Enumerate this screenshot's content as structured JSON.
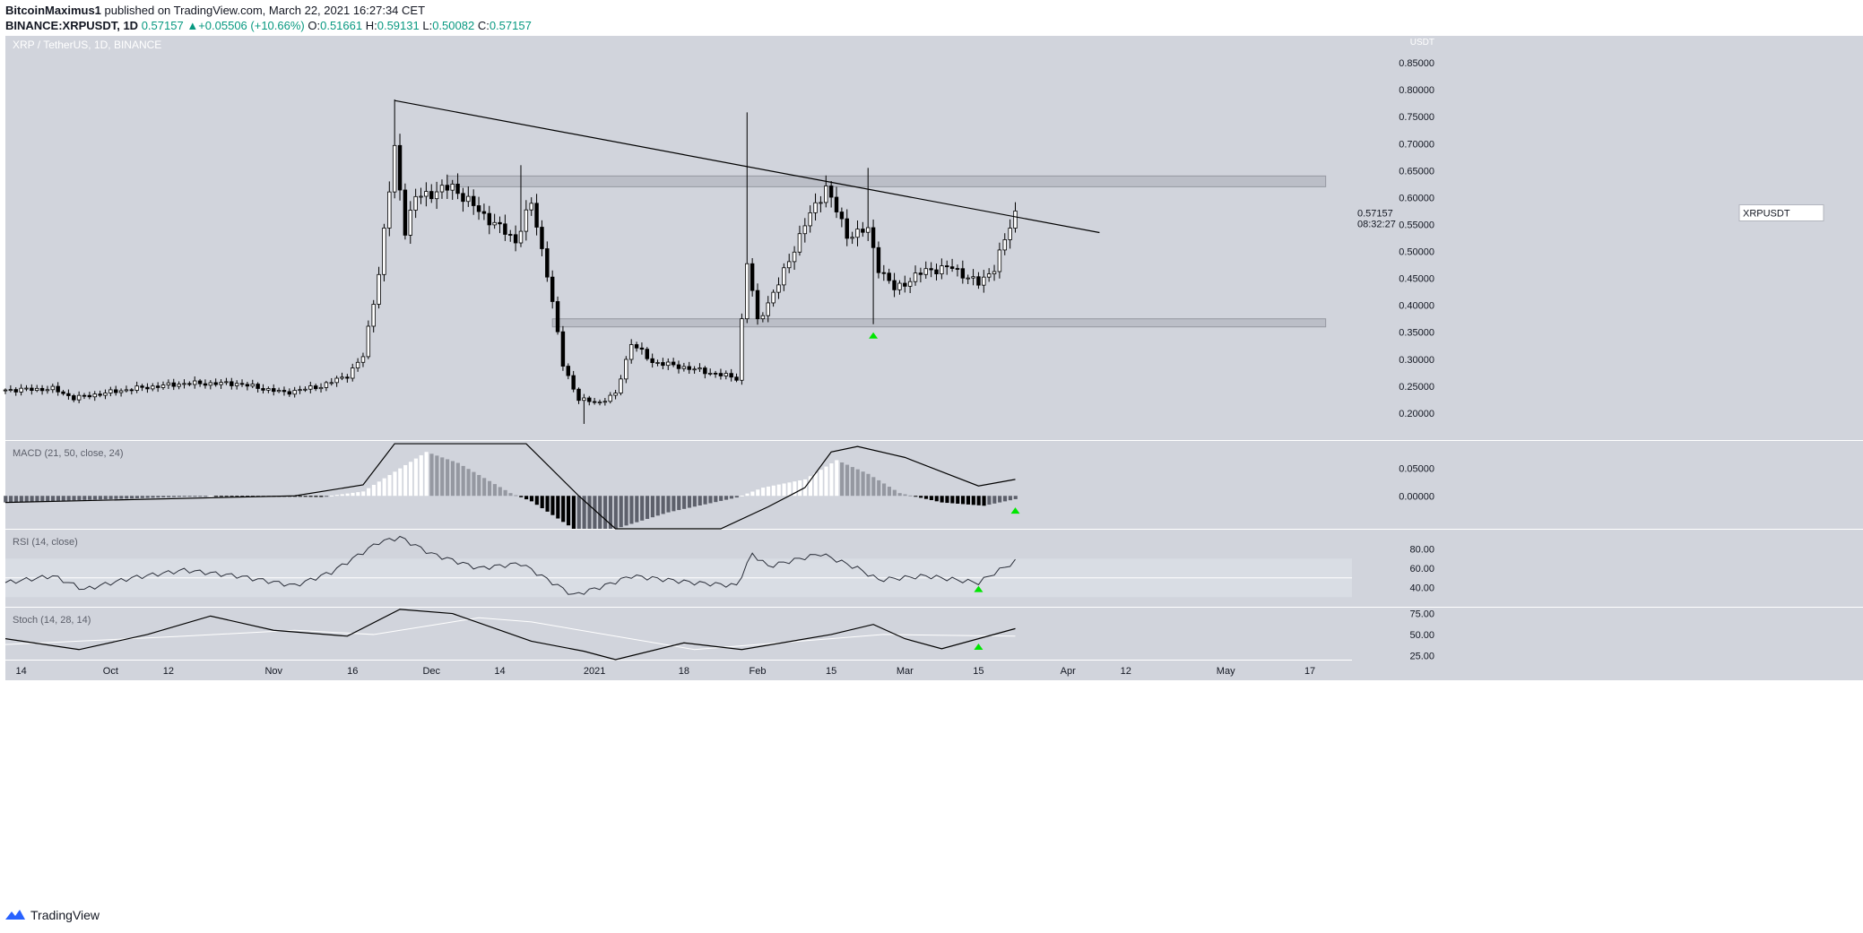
{
  "header": {
    "line1": {
      "author": "BitcoinMaximus1",
      "rest": "published on TradingView.com, March 22, 2021 16:27:34 CET"
    },
    "line2": {
      "symbol": "BINANCE:XRPUSDT, 1D",
      "last": "0.57157",
      "change": "+0.05506 (+10.66%)",
      "o_label": "O:",
      "o": "0.51661",
      "h_label": "H:",
      "h": "0.59131",
      "l_label": "L:",
      "l": "0.50082",
      "c_label": "C:",
      "c": "0.57157"
    }
  },
  "footer": {
    "brand": "TradingView"
  },
  "colors": {
    "background": "#d1d4dc",
    "bull": "#ffffff",
    "bear": "#000000",
    "zone": "#b2b5be",
    "signal": "#00e600"
  },
  "icons": {
    "up_triangle": "green-triangle-up-icon",
    "brand": "tradingview-logo-icon"
  },
  "chart_data": [
    {
      "type": "candlestick",
      "title": "XRP / TetherUS, 1D, BINANCE",
      "ylabel": "USDT",
      "ylim": [
        0.15,
        0.9
      ],
      "y_ticks": [
        "0.85000",
        "0.80000",
        "0.75000",
        "0.70000",
        "0.65000",
        "0.60000",
        "0.55000",
        "0.50000",
        "0.45000",
        "0.40000",
        "0.35000",
        "0.30000",
        "0.25000",
        "0.20000"
      ],
      "x_ticks": [
        "14",
        "Oct",
        "12",
        "Nov",
        "16",
        "Dec",
        "14",
        "2021",
        "18",
        "Feb",
        "15",
        "Mar",
        "15",
        "Apr",
        "12",
        "May",
        "17"
      ],
      "x_range_dates": [
        "2020-09-11",
        "2021-05-25"
      ],
      "price_label": {
        "symbol": "XRPUSDT",
        "value": "0.57157",
        "countdown": "08:32:27"
      },
      "resistance_zone": [
        0.62,
        0.64
      ],
      "support_zone": [
        0.36,
        0.375
      ],
      "descending_trendline": [
        {
          "date": "2020-11-24",
          "price": 0.78
        },
        {
          "date": "2021-04-07",
          "price": 0.535
        }
      ],
      "up_arrows": [
        {
          "date": "2021-02-23",
          "price": 0.345
        }
      ],
      "close_path": [
        {
          "date": "2020-09-11",
          "price": 0.243
        },
        {
          "date": "2020-09-20",
          "price": 0.245
        },
        {
          "date": "2020-09-24",
          "price": 0.228
        },
        {
          "date": "2020-10-05",
          "price": 0.245
        },
        {
          "date": "2020-10-15",
          "price": 0.255
        },
        {
          "date": "2020-10-25",
          "price": 0.255
        },
        {
          "date": "2020-11-03",
          "price": 0.238
        },
        {
          "date": "2020-11-10",
          "price": 0.25
        },
        {
          "date": "2020-11-15",
          "price": 0.27
        },
        {
          "date": "2020-11-18",
          "price": 0.305
        },
        {
          "date": "2020-11-21",
          "price": 0.46
        },
        {
          "date": "2020-11-24",
          "price": 0.69
        },
        {
          "date": "2020-11-26",
          "price": 0.54
        },
        {
          "date": "2020-11-28",
          "price": 0.6
        },
        {
          "date": "2020-12-05",
          "price": 0.62
        },
        {
          "date": "2020-12-10",
          "price": 0.575
        },
        {
          "date": "2020-12-17",
          "price": 0.52
        },
        {
          "date": "2020-12-20",
          "price": 0.59
        },
        {
          "date": "2020-12-23",
          "price": 0.46
        },
        {
          "date": "2020-12-26",
          "price": 0.29
        },
        {
          "date": "2020-12-29",
          "price": 0.225
        },
        {
          "date": "2021-01-02",
          "price": 0.22
        },
        {
          "date": "2021-01-05",
          "price": 0.235
        },
        {
          "date": "2021-01-08",
          "price": 0.33
        },
        {
          "date": "2021-01-12",
          "price": 0.295
        },
        {
          "date": "2021-01-18",
          "price": 0.285
        },
        {
          "date": "2021-01-28",
          "price": 0.265
        },
        {
          "date": "2021-01-30",
          "price": 0.48
        },
        {
          "date": "2021-02-01",
          "price": 0.37
        },
        {
          "date": "2021-02-05",
          "price": 0.44
        },
        {
          "date": "2021-02-10",
          "price": 0.55
        },
        {
          "date": "2021-02-14",
          "price": 0.62
        },
        {
          "date": "2021-02-18",
          "price": 0.53
        },
        {
          "date": "2021-02-22",
          "price": 0.54
        },
        {
          "date": "2021-02-24",
          "price": 0.47
        },
        {
          "date": "2021-02-27",
          "price": 0.43
        },
        {
          "date": "2021-03-05",
          "price": 0.465
        },
        {
          "date": "2021-03-10",
          "price": 0.47
        },
        {
          "date": "2021-03-15",
          "price": 0.44
        },
        {
          "date": "2021-03-18",
          "price": 0.47
        },
        {
          "date": "2021-03-20",
          "price": 0.52
        },
        {
          "date": "2021-03-22",
          "price": 0.57157
        }
      ],
      "wicks": [
        {
          "date": "2020-11-24",
          "high": 0.782
        },
        {
          "date": "2021-01-30",
          "high": 0.758
        },
        {
          "date": "2021-02-22",
          "high": 0.655
        },
        {
          "date": "2020-12-18",
          "high": 0.66
        },
        {
          "date": "2020-12-30",
          "low": 0.18
        },
        {
          "date": "2021-02-23",
          "low": 0.365
        },
        {
          "date": "2021-03-22",
          "high": 0.59131
        }
      ]
    },
    {
      "type": "histogram",
      "title": "MACD (21, 50, close, 24)",
      "ylim": [
        -0.06,
        0.1
      ],
      "y_ticks": [
        "0.05000",
        "0.00000"
      ],
      "histogram_path": [
        {
          "date": "2020-09-11",
          "value": -0.012
        },
        {
          "date": "2020-10-01",
          "value": -0.006
        },
        {
          "date": "2020-10-20",
          "value": 0.0
        },
        {
          "date": "2020-11-10",
          "value": -0.002
        },
        {
          "date": "2020-11-18",
          "value": 0.008
        },
        {
          "date": "2020-11-25",
          "value": 0.05
        },
        {
          "date": "2020-11-30",
          "value": 0.08
        },
        {
          "date": "2020-12-06",
          "value": 0.06
        },
        {
          "date": "2020-12-16",
          "value": 0.005
        },
        {
          "date": "2020-12-20",
          "value": -0.01
        },
        {
          "date": "2020-12-28",
          "value": -0.06
        },
        {
          "date": "2021-01-05",
          "value": -0.06
        },
        {
          "date": "2021-01-15",
          "value": -0.03
        },
        {
          "date": "2021-01-28",
          "value": -0.003
        },
        {
          "date": "2021-02-02",
          "value": 0.015
        },
        {
          "date": "2021-02-10",
          "value": 0.03
        },
        {
          "date": "2021-02-16",
          "value": 0.065
        },
        {
          "date": "2021-02-22",
          "value": 0.04
        },
        {
          "date": "2021-02-28",
          "value": 0.005
        },
        {
          "date": "2021-03-08",
          "value": -0.012
        },
        {
          "date": "2021-03-16",
          "value": -0.018
        },
        {
          "date": "2021-03-22",
          "value": -0.006
        }
      ],
      "line_path": [
        {
          "date": "2020-09-11",
          "value": -0.012
        },
        {
          "date": "2020-11-05",
          "value": 0.0
        },
        {
          "date": "2020-11-18",
          "value": 0.02
        },
        {
          "date": "2020-11-24",
          "value": 0.095
        },
        {
          "date": "2020-12-19",
          "value": 0.095
        },
        {
          "date": "2020-12-29",
          "value": 0.0
        },
        {
          "date": "2021-01-05",
          "value": -0.06
        },
        {
          "date": "2021-01-25",
          "value": -0.06
        },
        {
          "date": "2021-02-03",
          "value": -0.02
        },
        {
          "date": "2021-02-10",
          "value": 0.015
        },
        {
          "date": "2021-02-15",
          "value": 0.08
        },
        {
          "date": "2021-02-20",
          "value": 0.09
        },
        {
          "date": "2021-03-01",
          "value": 0.07
        },
        {
          "date": "2021-03-15",
          "value": 0.018
        },
        {
          "date": "2021-03-22",
          "value": 0.03
        }
      ],
      "up_arrows": [
        {
          "date": "2021-03-22",
          "value": -0.026
        }
      ]
    },
    {
      "type": "line",
      "title": "RSI (14, close)",
      "ylim": [
        20,
        100
      ],
      "y_ticks": [
        "80.00",
        "60.00",
        "40.00"
      ],
      "band": [
        30,
        70
      ],
      "midline": 50,
      "series": [
        {
          "values": [
            {
              "date": "2020-09-11",
              "value": 45
            },
            {
              "date": "2020-09-20",
              "value": 52
            },
            {
              "date": "2020-09-26",
              "value": 38
            },
            {
              "date": "2020-10-05",
              "value": 50
            },
            {
              "date": "2020-10-15",
              "value": 58
            },
            {
              "date": "2020-10-25",
              "value": 52
            },
            {
              "date": "2020-11-05",
              "value": 42
            },
            {
              "date": "2020-11-12",
              "value": 56
            },
            {
              "date": "2020-11-21",
              "value": 87
            },
            {
              "date": "2020-11-25",
              "value": 92
            },
            {
              "date": "2020-12-01",
              "value": 75
            },
            {
              "date": "2020-12-10",
              "value": 60
            },
            {
              "date": "2020-12-18",
              "value": 65
            },
            {
              "date": "2020-12-28",
              "value": 32
            },
            {
              "date": "2021-01-03",
              "value": 42
            },
            {
              "date": "2021-01-08",
              "value": 52
            },
            {
              "date": "2021-01-20",
              "value": 45
            },
            {
              "date": "2021-01-28",
              "value": 42
            },
            {
              "date": "2021-01-31",
              "value": 75
            },
            {
              "date": "2021-02-03",
              "value": 62
            },
            {
              "date": "2021-02-13",
              "value": 75
            },
            {
              "date": "2021-02-20",
              "value": 60
            },
            {
              "date": "2021-02-24",
              "value": 48
            },
            {
              "date": "2021-03-05",
              "value": 52
            },
            {
              "date": "2021-03-15",
              "value": 45
            },
            {
              "date": "2021-03-18",
              "value": 55
            },
            {
              "date": "2021-03-22",
              "value": 67
            }
          ]
        }
      ],
      "up_arrows": [
        {
          "date": "2021-03-15",
          "value": 39
        }
      ]
    },
    {
      "type": "line",
      "title": "Stoch (14, 28, 14)",
      "ylim": [
        20,
        82
      ],
      "y_ticks": [
        "75.00",
        "50.00",
        "25.00"
      ],
      "series": [
        {
          "values": [
            {
              "date": "2020-09-11",
              "value": 45
            },
            {
              "date": "2020-09-25",
              "value": 32
            },
            {
              "date": "2020-10-08",
              "value": 50
            },
            {
              "date": "2020-10-20",
              "value": 72
            },
            {
              "date": "2020-11-01",
              "value": 55
            },
            {
              "date": "2020-11-15",
              "value": 48
            },
            {
              "date": "2020-11-25",
              "value": 80
            },
            {
              "date": "2020-12-05",
              "value": 75
            },
            {
              "date": "2020-12-20",
              "value": 42
            },
            {
              "date": "2020-12-30",
              "value": 30
            },
            {
              "date": "2021-01-05",
              "value": 20
            },
            {
              "date": "2021-01-18",
              "value": 40
            },
            {
              "date": "2021-01-29",
              "value": 32
            },
            {
              "date": "2021-02-15",
              "value": 50
            },
            {
              "date": "2021-02-23",
              "value": 62
            },
            {
              "date": "2021-03-01",
              "value": 45
            },
            {
              "date": "2021-03-08",
              "value": 33
            },
            {
              "date": "2021-03-15",
              "value": 45
            },
            {
              "date": "2021-03-22",
              "value": 57
            }
          ]
        },
        {
          "values": [
            {
              "date": "2020-09-11",
              "value": 38
            },
            {
              "date": "2020-10-15",
              "value": 48
            },
            {
              "date": "2020-11-05",
              "value": 55
            },
            {
              "date": "2020-11-20",
              "value": 50
            },
            {
              "date": "2020-12-10",
              "value": 70
            },
            {
              "date": "2020-12-20",
              "value": 65
            },
            {
              "date": "2021-01-20",
              "value": 32
            },
            {
              "date": "2021-02-05",
              "value": 40
            },
            {
              "date": "2021-02-25",
              "value": 50
            },
            {
              "date": "2021-03-22",
              "value": 48
            }
          ]
        }
      ],
      "up_arrows": [
        {
          "date": "2021-03-15",
          "value": 36
        }
      ]
    }
  ]
}
